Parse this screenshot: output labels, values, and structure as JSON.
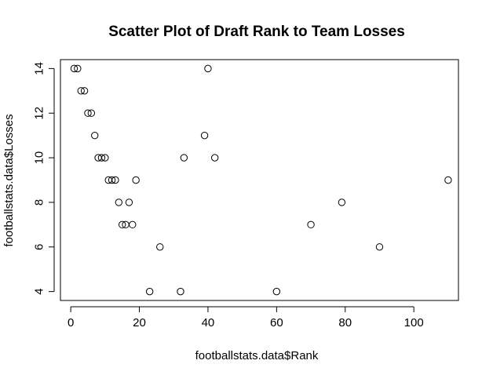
{
  "chart_data": {
    "type": "scatter",
    "title": "Scatter Plot of Draft Rank to Team Losses",
    "xlabel": "footballstats.data$Rank",
    "ylabel": "footballstats.data$Losses",
    "xlim": [
      -3,
      113
    ],
    "ylim": [
      3.6,
      14.4
    ],
    "x_ticks": [
      0,
      20,
      40,
      60,
      80,
      100
    ],
    "y_ticks": [
      4,
      6,
      8,
      10,
      12,
      14
    ],
    "grid": false,
    "legend": "none",
    "point_style": "open-circle",
    "point_color": "#000000",
    "points": [
      {
        "x": 1,
        "y": 14
      },
      {
        "x": 2,
        "y": 14
      },
      {
        "x": 3,
        "y": 13
      },
      {
        "x": 4,
        "y": 13
      },
      {
        "x": 5,
        "y": 12
      },
      {
        "x": 6,
        "y": 12
      },
      {
        "x": 7,
        "y": 11
      },
      {
        "x": 8,
        "y": 10
      },
      {
        "x": 9,
        "y": 10
      },
      {
        "x": 10,
        "y": 10
      },
      {
        "x": 11,
        "y": 9
      },
      {
        "x": 12,
        "y": 9
      },
      {
        "x": 13,
        "y": 9
      },
      {
        "x": 14,
        "y": 8
      },
      {
        "x": 15,
        "y": 7
      },
      {
        "x": 16,
        "y": 7
      },
      {
        "x": 17,
        "y": 8
      },
      {
        "x": 18,
        "y": 7
      },
      {
        "x": 19,
        "y": 9
      },
      {
        "x": 23,
        "y": 4
      },
      {
        "x": 26,
        "y": 6
      },
      {
        "x": 32,
        "y": 4
      },
      {
        "x": 33,
        "y": 10
      },
      {
        "x": 39,
        "y": 11
      },
      {
        "x": 40,
        "y": 14
      },
      {
        "x": 42,
        "y": 10
      },
      {
        "x": 60,
        "y": 4
      },
      {
        "x": 70,
        "y": 7
      },
      {
        "x": 79,
        "y": 8
      },
      {
        "x": 90,
        "y": 6
      },
      {
        "x": 110,
        "y": 9
      }
    ]
  }
}
